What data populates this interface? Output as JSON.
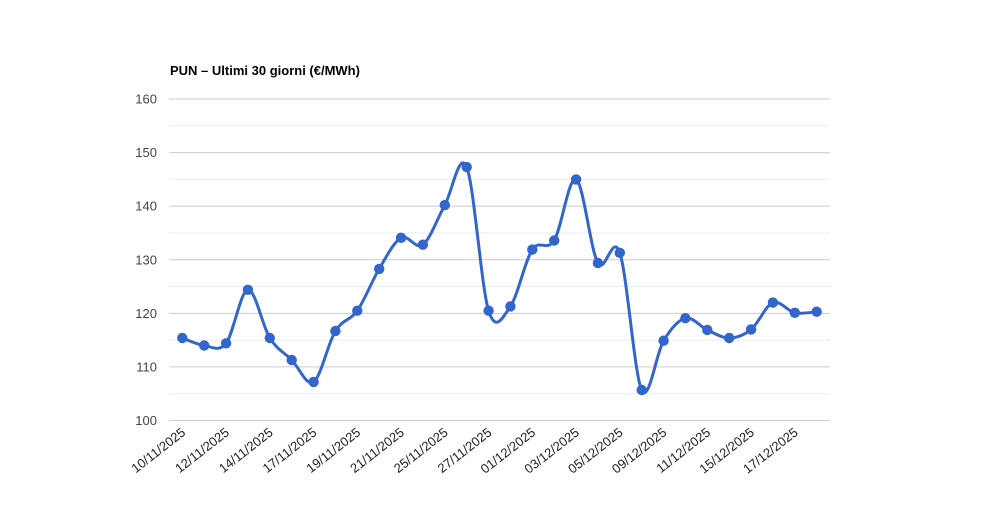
{
  "page": {
    "background_color": "#ffffff"
  },
  "chart_data": {
    "type": "line",
    "title": "PUN – Ultimi 30 giorni (€/MWh)",
    "xlabel": "",
    "ylabel": "",
    "legend": "none",
    "smooth": true,
    "ylim": [
      100,
      160
    ],
    "y_major_ticks": [
      100,
      110,
      120,
      130,
      140,
      150,
      160
    ],
    "y_minor_ticks": [
      105,
      115,
      125,
      135,
      145,
      155
    ],
    "x_tick_interval": 2,
    "x_tick_labels": [
      "10/11/2025",
      "12/11/2025",
      "14/11/2025",
      "17/11/2025",
      "19/11/2025",
      "21/11/2025",
      "25/11/2025",
      "27/11/2025",
      "01/12/2025",
      "03/12/2025",
      "05/12/2025",
      "09/12/2025",
      "11/12/2025",
      "15/12/2025",
      "17/12/2025"
    ],
    "values": [
      115.4,
      114.0,
      114.4,
      124.4,
      115.4,
      111.3,
      107.2,
      116.7,
      120.5,
      128.3,
      134.1,
      132.8,
      140.2,
      147.3,
      120.5,
      121.3,
      131.9,
      133.6,
      145.0,
      129.4,
      131.3,
      105.7,
      114.9,
      119.1,
      116.9,
      115.4,
      117.0,
      122.0,
      120.1,
      120.3
    ],
    "colors": {
      "series": "#3366cc",
      "grid_major": "#cccccc",
      "grid_minor": "#ebebeb",
      "axis_text": "#444444",
      "x_label_text": "#222222",
      "title_text": "#000000"
    }
  }
}
